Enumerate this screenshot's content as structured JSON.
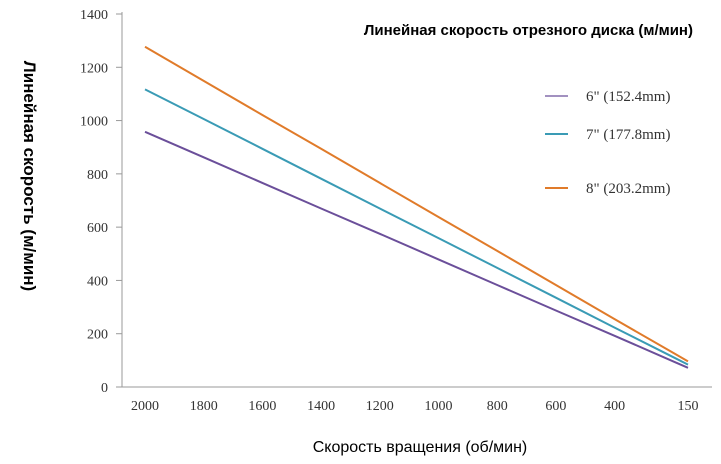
{
  "chart_data": {
    "type": "line",
    "title": "Линейная скорость отрезного диска (м/мин)",
    "xlabel": "Скорость вращения (об/мин)",
    "ylabel": "Линейная скорость (м/мин)",
    "x_ticks": [
      "2000",
      "1800",
      "1600",
      "1400",
      "1200",
      "1000",
      "800",
      "600",
      "400",
      "150"
    ],
    "y_ticks": [
      "0",
      "200",
      "400",
      "600",
      "800",
      "1000",
      "1200",
      "1400"
    ],
    "ylim": [
      0,
      1400
    ],
    "grid": false,
    "legend_position": "right",
    "x": [
      2000,
      1800,
      1600,
      1400,
      1200,
      1000,
      800,
      600,
      400,
      200,
      150
    ],
    "series": [
      {
        "name": "6\"  (152.4mm)",
        "color": "#6b4f9a",
        "values": [
          958,
          862,
          766,
          670,
          575,
          479,
          383,
          287,
          192,
          96,
          72
        ]
      },
      {
        "name": "7\"  (177.8mm)",
        "color": "#3a9bb5",
        "values": [
          1117,
          1006,
          894,
          782,
          670,
          559,
          447,
          335,
          223,
          112,
          84
        ]
      },
      {
        "name": "8\"  (203.2mm)",
        "color": "#e07b2a",
        "values": [
          1277,
          1149,
          1021,
          894,
          766,
          638,
          511,
          383,
          255,
          128,
          96
        ]
      }
    ]
  }
}
